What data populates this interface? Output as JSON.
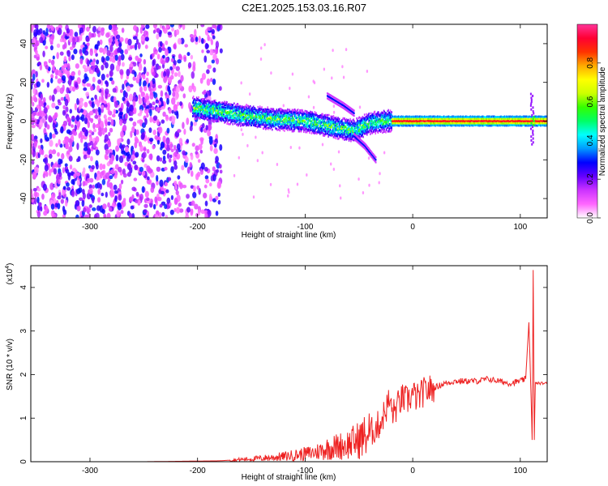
{
  "title": "C2E1.2025.153.03.16.R07",
  "chart_data": [
    {
      "type": "heatmap",
      "xlabel": "Height of straight line (km)",
      "ylabel": "Frequency (Hz)",
      "xlim": [
        -355,
        125
      ],
      "ylim": [
        -50,
        50
      ],
      "xticks": [
        -300,
        -200,
        -100,
        0,
        100
      ],
      "yticks": [
        -40,
        -20,
        0,
        20,
        40
      ],
      "colorbar": {
        "label": "Normalized spectral amplitude",
        "range": [
          0,
          1
        ],
        "ticks": [
          0.0,
          0.2,
          0.4,
          0.6,
          0.8
        ],
        "colors": [
          "#ffffff",
          "#ff66ff",
          "#cc33ff",
          "#6600ff",
          "#0000ff",
          "#0099ff",
          "#00ffff",
          "#00ff66",
          "#33ff00",
          "#ccff00",
          "#ffff00",
          "#ffaa00",
          "#ff3300",
          "#ff0033",
          "#ff3399"
        ]
      },
      "features": {
        "noise_region_x": [
          -355,
          -178
        ],
        "main_trace": [
          {
            "x": -205,
            "y": 7
          },
          {
            "x": -180,
            "y": 5
          },
          {
            "x": -160,
            "y": 3
          },
          {
            "x": -130,
            "y": 1
          },
          {
            "x": -100,
            "y": 0
          },
          {
            "x": -75,
            "y": -3
          },
          {
            "x": -55,
            "y": -5
          },
          {
            "x": -40,
            "y": -1
          },
          {
            "x": -25,
            "y": 0
          },
          {
            "x": 0,
            "y": 0
          },
          {
            "x": 50,
            "y": 0
          },
          {
            "x": 100,
            "y": 0
          },
          {
            "x": 125,
            "y": 0
          }
        ],
        "upper_branch": [
          {
            "x": -80,
            "y": 13
          },
          {
            "x": -65,
            "y": 8
          },
          {
            "x": -55,
            "y": 4
          }
        ],
        "lower_branch": [
          {
            "x": -55,
            "y": -8
          },
          {
            "x": -45,
            "y": -13
          },
          {
            "x": -35,
            "y": -20
          }
        ]
      }
    },
    {
      "type": "line",
      "xlabel": "Height of straight line (km)",
      "ylabel": "SNR (10 * v/v)",
      "yscale_label": "(x10",
      "yscale_exp": "4",
      "xlim": [
        -355,
        125
      ],
      "ylim": [
        0,
        4.5
      ],
      "xticks": [
        -300,
        -200,
        -100,
        0,
        100
      ],
      "yticks": [
        0,
        1,
        2,
        3,
        4
      ],
      "color": "#ee2222",
      "series": [
        {
          "x": [
            -355,
            -250,
            -180,
            -160,
            -140,
            -120,
            -100,
            -90,
            -80,
            -70,
            -60,
            -50,
            -40,
            -35,
            -30,
            -25,
            -22,
            -18,
            -15,
            -10,
            -5,
            0,
            5,
            10,
            20,
            30,
            40,
            50,
            60,
            70,
            80,
            90,
            100,
            105,
            108,
            110,
            111,
            112,
            113,
            114,
            116,
            120,
            125
          ],
          "y": [
            0.0,
            0.0,
            0.02,
            0.05,
            0.08,
            0.12,
            0.18,
            0.22,
            0.3,
            0.35,
            0.4,
            0.5,
            0.65,
            0.75,
            0.9,
            1.2,
            1.4,
            1.1,
            1.25,
            1.45,
            1.4,
            1.55,
            1.45,
            1.6,
            1.7,
            1.8,
            1.85,
            1.85,
            1.85,
            1.9,
            1.85,
            1.8,
            1.85,
            1.9,
            3.2,
            1.5,
            0.5,
            4.4,
            0.5,
            1.8,
            1.8,
            1.8,
            1.8
          ]
        }
      ]
    }
  ]
}
